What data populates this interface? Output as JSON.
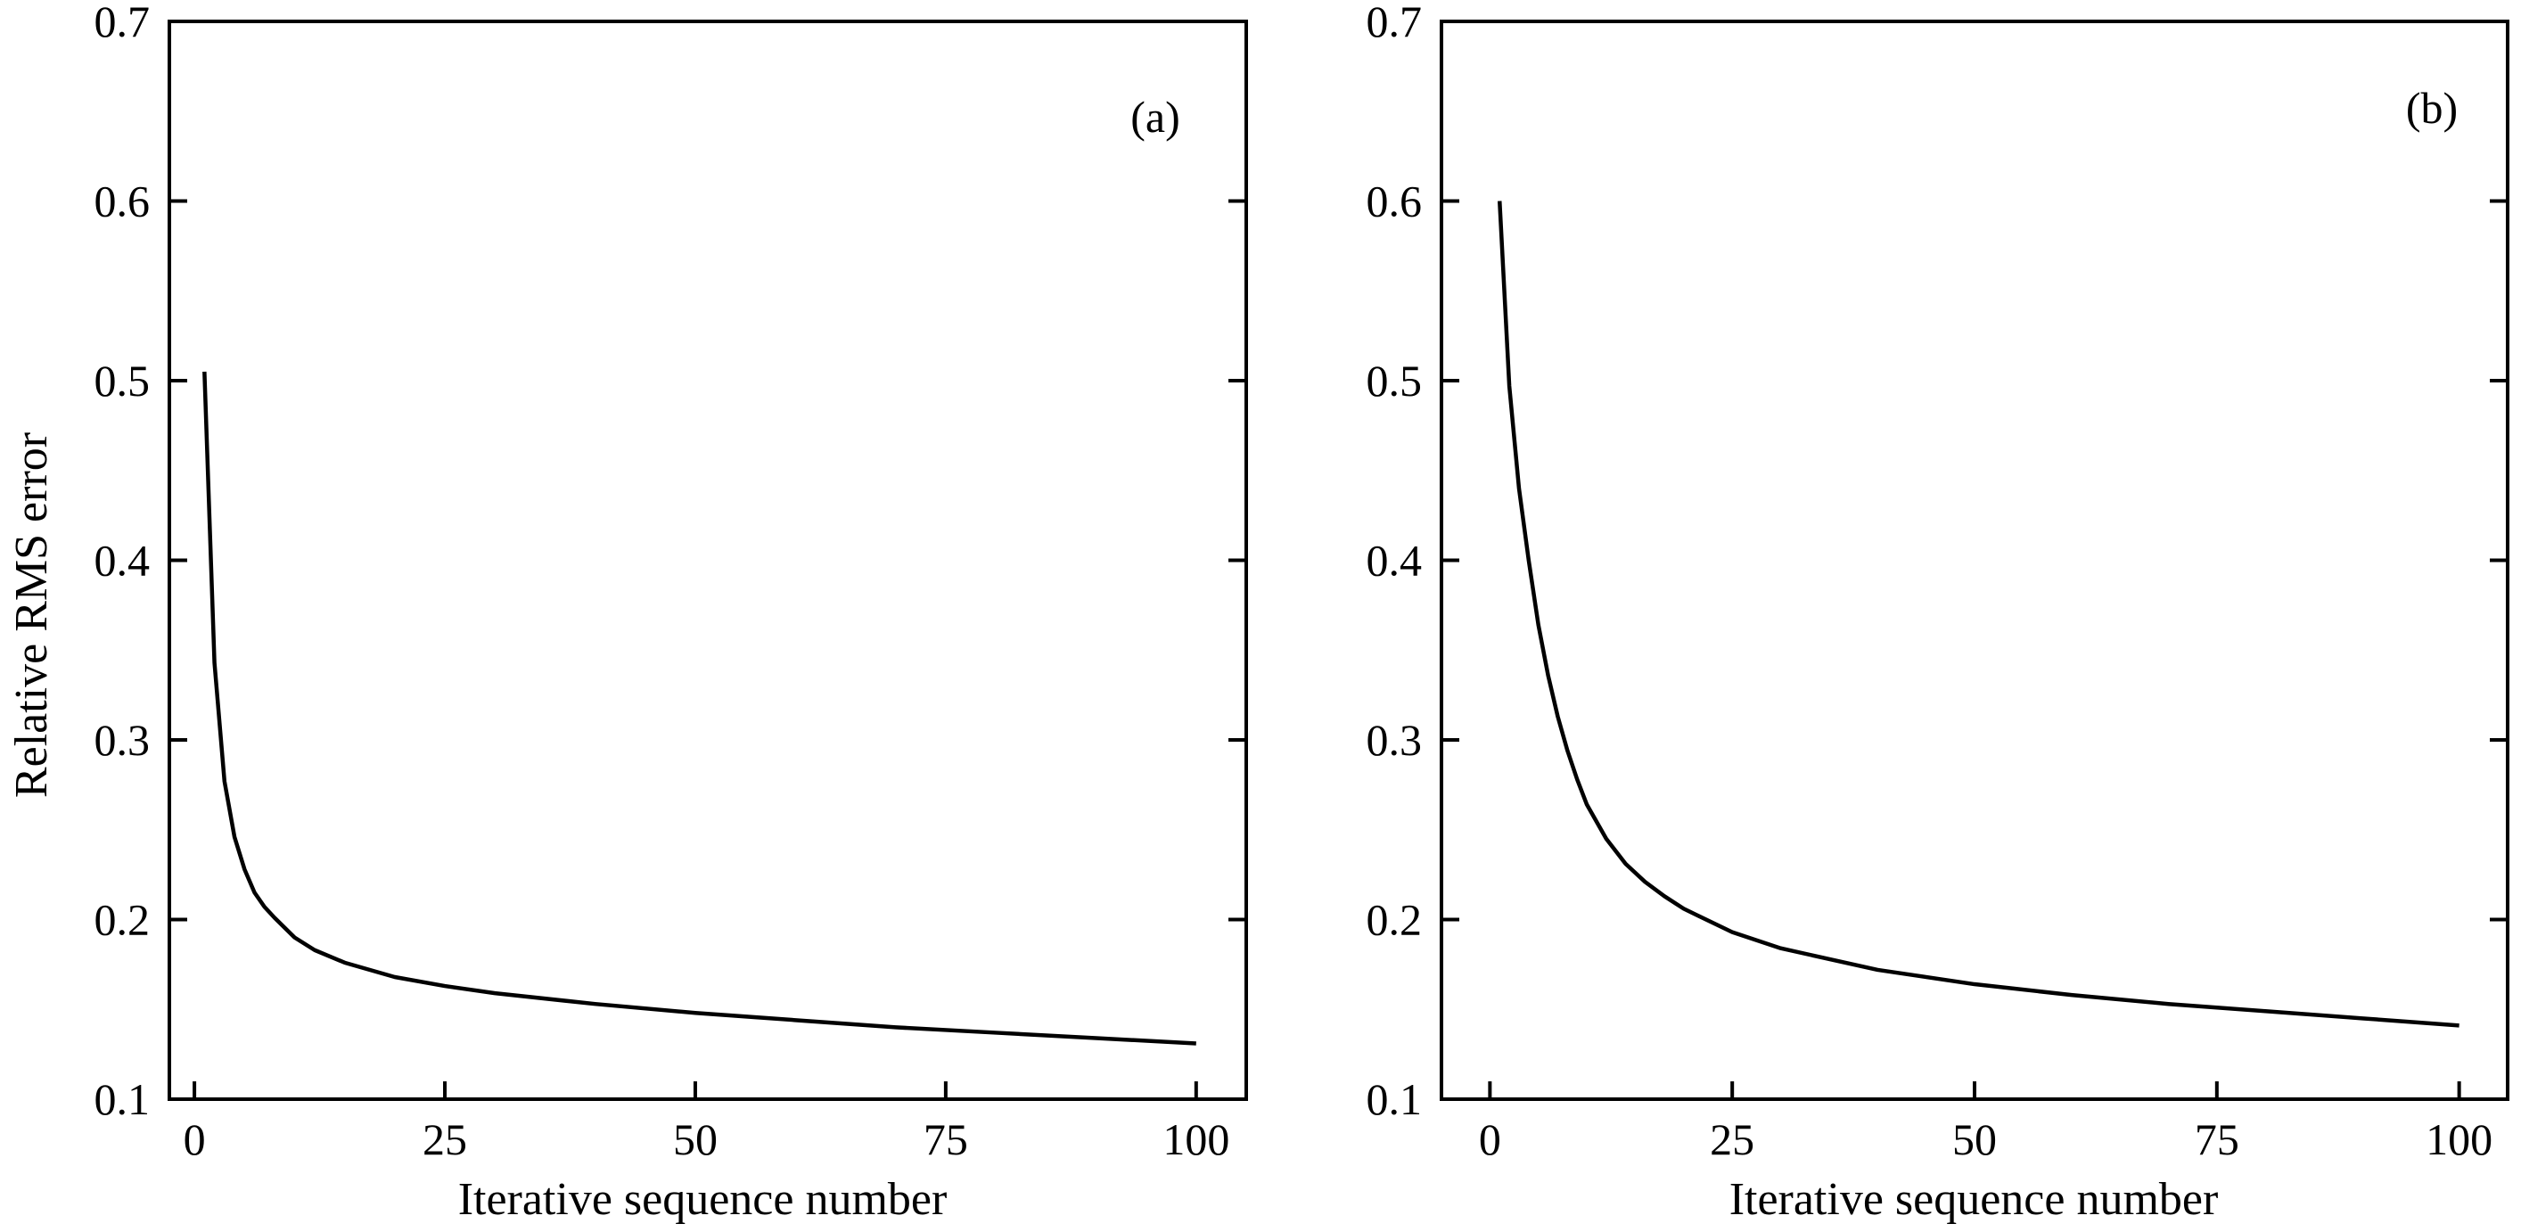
{
  "chart_data": [
    {
      "type": "line",
      "panel_label": "(a)",
      "xlabel": "Iterative sequence number",
      "ylabel": "Relative RMS error",
      "xlim": [
        -2.5,
        105
      ],
      "ylim": [
        0.1,
        0.7
      ],
      "xticks": [
        "0",
        "25",
        "50",
        "75",
        "100"
      ],
      "yticks": [
        "0.1",
        "0.2",
        "0.3",
        "0.4",
        "0.5",
        "0.6",
        "0.7"
      ],
      "grid": false,
      "x": [
        1,
        2,
        3,
        4,
        5,
        6,
        7,
        8,
        10,
        12,
        15,
        20,
        25,
        30,
        40,
        50,
        60,
        70,
        80,
        90,
        100
      ],
      "y": [
        0.505,
        0.343,
        0.277,
        0.246,
        0.228,
        0.215,
        0.207,
        0.201,
        0.19,
        0.183,
        0.176,
        0.168,
        0.163,
        0.159,
        0.153,
        0.148,
        0.144,
        0.14,
        0.137,
        0.134,
        0.131
      ]
    },
    {
      "type": "line",
      "panel_label": "(b)",
      "xlabel": "Iterative sequence number",
      "ylabel": "",
      "xlim": [
        -5,
        105
      ],
      "ylim": [
        0.1,
        0.7
      ],
      "xticks": [
        "0",
        "25",
        "50",
        "75",
        "100"
      ],
      "yticks": [
        "0.1",
        "0.2",
        "0.3",
        "0.4",
        "0.5",
        "0.6",
        "0.7"
      ],
      "grid": false,
      "x": [
        1,
        2,
        3,
        4,
        5,
        6,
        7,
        8,
        9,
        10,
        12,
        14,
        16,
        18,
        20,
        25,
        30,
        40,
        50,
        60,
        70,
        80,
        90,
        100
      ],
      "y": [
        0.6,
        0.497,
        0.44,
        0.4,
        0.364,
        0.336,
        0.313,
        0.294,
        0.278,
        0.264,
        0.245,
        0.231,
        0.221,
        0.213,
        0.206,
        0.193,
        0.184,
        0.172,
        0.164,
        0.158,
        0.153,
        0.149,
        0.145,
        0.141
      ]
    }
  ]
}
